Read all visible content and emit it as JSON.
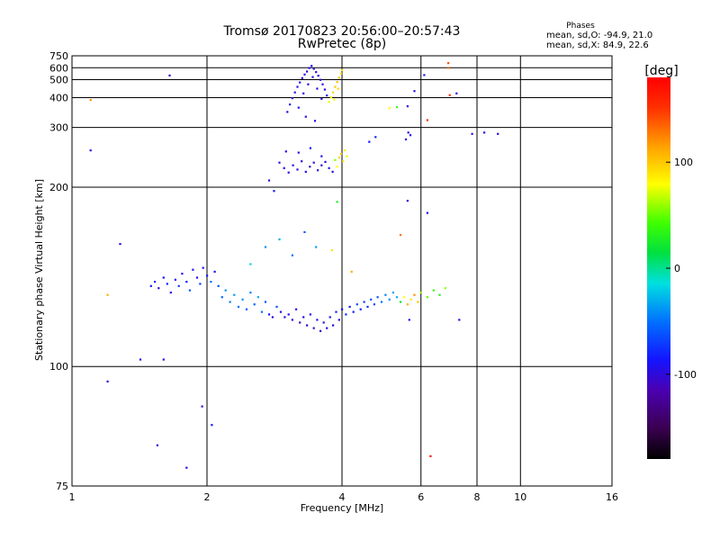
{
  "header": {
    "title_line1": "Tromsø 20170823 20:56:00–20:57:43",
    "title_line2": "RwPretec (8p)"
  },
  "stats": {
    "label": "Phases",
    "line1": "mean, sd,O:  -94.9, 21.0",
    "line2": "mean, sd,X:  84.9, 22.6"
  },
  "colorbar": {
    "unit_label": "[deg]",
    "ticks": [
      {
        "value": 100,
        "label": "100"
      },
      {
        "value": 0,
        "label": "0"
      },
      {
        "value": -100,
        "label": "-100"
      }
    ],
    "range": [
      -180,
      180
    ]
  },
  "chart_data": {
    "type": "scatter",
    "xlabel": "Frequency [MHz]",
    "ylabel": "Stationary phase Virtual Height [km]",
    "x_scale": "log",
    "y_scale": "reciprocal",
    "xlim": [
      1,
      16
    ],
    "ylim": [
      75,
      750
    ],
    "x_ticks": [
      {
        "value": 1,
        "label": "1"
      },
      {
        "value": 2,
        "label": "2"
      },
      {
        "value": 4,
        "label": "4"
      },
      {
        "value": 6,
        "label": "6"
      },
      {
        "value": 8,
        "label": "8"
      },
      {
        "value": 10,
        "label": "10"
      },
      {
        "value": 16,
        "label": "16"
      }
    ],
    "y_ticks": [
      {
        "value": 75,
        "label": "75"
      },
      {
        "value": 100,
        "label": "100"
      },
      {
        "value": 200,
        "label": "200"
      },
      {
        "value": 300,
        "label": "300"
      },
      {
        "value": 400,
        "label": "400"
      },
      {
        "value": 500,
        "label": "500"
      },
      {
        "value": 600,
        "label": "600"
      },
      {
        "value": 750,
        "label": "750"
      }
    ],
    "grid": true,
    "color_scale": "rainbow phase, -180 to 180 deg",
    "points": [
      [
        1.5,
        129,
        -95
      ],
      [
        1.53,
        131,
        -90
      ],
      [
        1.56,
        128,
        -100
      ],
      [
        1.6,
        133,
        -92
      ],
      [
        1.63,
        130,
        -85
      ],
      [
        1.66,
        126,
        -98
      ],
      [
        1.7,
        132,
        -90
      ],
      [
        1.73,
        129,
        -75
      ],
      [
        1.76,
        135,
        -95
      ],
      [
        1.8,
        131,
        -88
      ],
      [
        1.83,
        127,
        -60
      ],
      [
        1.86,
        137,
        -92
      ],
      [
        1.9,
        133,
        -100
      ],
      [
        1.93,
        130,
        -70
      ],
      [
        1.96,
        138,
        -95
      ],
      [
        2.0,
        134,
        -85
      ],
      [
        2.04,
        131,
        -50
      ],
      [
        2.08,
        136,
        -90
      ],
      [
        2.12,
        129,
        -65
      ],
      [
        2.16,
        124,
        -55
      ],
      [
        2.2,
        127,
        -40
      ],
      [
        2.25,
        122,
        -45
      ],
      [
        2.3,
        125,
        -35
      ],
      [
        2.35,
        120,
        -50
      ],
      [
        2.4,
        123,
        -40
      ],
      [
        2.45,
        119,
        -60
      ],
      [
        2.5,
        126,
        -45
      ],
      [
        2.55,
        121,
        -55
      ],
      [
        2.6,
        124,
        -30
      ],
      [
        2.65,
        118,
        -50
      ],
      [
        2.7,
        122,
        -65
      ],
      [
        2.75,
        117,
        -95
      ],
      [
        2.8,
        116,
        -100
      ],
      [
        2.86,
        120,
        -60
      ],
      [
        2.92,
        118,
        -95
      ],
      [
        2.98,
        116,
        -105
      ],
      [
        3.04,
        117,
        -98
      ],
      [
        3.1,
        115,
        -102
      ],
      [
        3.16,
        119,
        -95
      ],
      [
        3.22,
        114,
        -110
      ],
      [
        3.28,
        116,
        -100
      ],
      [
        3.34,
        113,
        -108
      ],
      [
        3.4,
        117,
        -96
      ],
      [
        3.46,
        112,
        -104
      ],
      [
        3.52,
        115,
        -99
      ],
      [
        3.58,
        111,
        -110
      ],
      [
        3.64,
        114,
        -95
      ],
      [
        3.7,
        112,
        -100
      ],
      [
        3.76,
        116,
        -90
      ],
      [
        3.82,
        113,
        -100
      ],
      [
        3.88,
        118,
        -85
      ],
      [
        3.94,
        115,
        -95
      ],
      [
        4.0,
        119,
        -90
      ],
      [
        4.08,
        117,
        -80
      ],
      [
        4.16,
        120,
        -85
      ],
      [
        4.24,
        118,
        -90
      ],
      [
        4.32,
        121,
        -70
      ],
      [
        4.4,
        119,
        -85
      ],
      [
        4.48,
        122,
        -75
      ],
      [
        4.56,
        120,
        -80
      ],
      [
        4.64,
        123,
        -65
      ],
      [
        4.72,
        121,
        -70
      ],
      [
        4.8,
        124,
        -60
      ],
      [
        4.9,
        122,
        -50
      ],
      [
        5.0,
        125,
        -45
      ],
      [
        5.1,
        123,
        -40
      ],
      [
        5.2,
        126,
        -35
      ],
      [
        5.3,
        124,
        -30
      ],
      [
        5.4,
        122,
        20
      ],
      [
        5.5,
        124,
        80
      ],
      [
        5.6,
        121,
        110
      ],
      [
        5.7,
        123,
        90
      ],
      [
        5.8,
        125,
        120
      ],
      [
        5.9,
        122,
        100
      ],
      [
        6.0,
        126,
        60
      ],
      [
        6.2,
        124,
        50
      ],
      [
        6.4,
        127,
        40
      ],
      [
        6.6,
        125,
        30
      ],
      [
        6.8,
        128,
        60
      ],
      [
        2.5,
        140,
        -20
      ],
      [
        2.7,
        150,
        -40
      ],
      [
        2.9,
        155,
        -30
      ],
      [
        3.1,
        145,
        -50
      ],
      [
        3.3,
        160,
        -60
      ],
      [
        3.5,
        150,
        -35
      ],
      [
        3.8,
        148,
        90
      ],
      [
        4.2,
        136,
        110
      ],
      [
        5.4,
        158,
        130
      ],
      [
        2.75,
        208,
        -100
      ],
      [
        2.82,
        196,
        -90
      ],
      [
        2.9,
        232,
        -100
      ],
      [
        2.97,
        224,
        -96
      ],
      [
        3.04,
        218,
        -104
      ],
      [
        3.11,
        228,
        -98
      ],
      [
        3.18,
        222,
        -100
      ],
      [
        3.25,
        234,
        -102
      ],
      [
        3.32,
        219,
        -95
      ],
      [
        3.39,
        226,
        -108
      ],
      [
        3.46,
        232,
        -100
      ],
      [
        3.53,
        221,
        -96
      ],
      [
        3.6,
        228,
        -104
      ],
      [
        3.67,
        233,
        -98
      ],
      [
        3.74,
        224,
        -100
      ],
      [
        3.81,
        219,
        -95
      ],
      [
        3.86,
        236,
        60
      ],
      [
        3.9,
        226,
        80
      ],
      [
        3.94,
        240,
        95
      ],
      [
        3.98,
        246,
        100
      ],
      [
        4.02,
        234,
        90
      ],
      [
        4.06,
        252,
        85
      ],
      [
        4.1,
        242,
        75
      ],
      [
        3.0,
        250,
        -95
      ],
      [
        3.2,
        248,
        -100
      ],
      [
        3.4,
        256,
        -90
      ],
      [
        3.6,
        242,
        -100
      ],
      [
        4.6,
        268,
        -90
      ],
      [
        4.75,
        278,
        -85
      ],
      [
        5.55,
        273,
        -95
      ],
      [
        5.62,
        288,
        -100
      ],
      [
        5.68,
        282,
        -92
      ],
      [
        3.9,
        185,
        30
      ],
      [
        5.6,
        186,
        -100
      ],
      [
        3.02,
        345,
        -100
      ],
      [
        3.06,
        372,
        -96
      ],
      [
        3.1,
        398,
        -102
      ],
      [
        3.14,
        425,
        -98
      ],
      [
        3.18,
        455,
        -100
      ],
      [
        3.22,
        482,
        -94
      ],
      [
        3.26,
        512,
        -100
      ],
      [
        3.3,
        540,
        -98
      ],
      [
        3.34,
        565,
        -102
      ],
      [
        3.38,
        598,
        -96
      ],
      [
        3.42,
        620,
        -100
      ],
      [
        3.46,
        590,
        -98
      ],
      [
        3.5,
        560,
        -100
      ],
      [
        3.54,
        530,
        -96
      ],
      [
        3.58,
        500,
        -100
      ],
      [
        3.62,
        470,
        -98
      ],
      [
        3.66,
        440,
        -102
      ],
      [
        3.7,
        410,
        -96
      ],
      [
        3.2,
        360,
        -98
      ],
      [
        3.28,
        420,
        -100
      ],
      [
        3.36,
        470,
        -96
      ],
      [
        3.44,
        520,
        -100
      ],
      [
        3.52,
        445,
        -98
      ],
      [
        3.6,
        395,
        -102
      ],
      [
        3.32,
        330,
        -95
      ],
      [
        3.48,
        318,
        -100
      ],
      [
        3.74,
        382,
        75
      ],
      [
        3.78,
        402,
        85
      ],
      [
        3.82,
        425,
        95
      ],
      [
        3.86,
        455,
        100
      ],
      [
        3.9,
        485,
        105
      ],
      [
        3.94,
        515,
        100
      ],
      [
        3.98,
        548,
        95
      ],
      [
        4.0,
        578,
        90
      ],
      [
        3.84,
        392,
        80
      ],
      [
        3.92,
        444,
        95
      ],
      [
        5.1,
        358,
        80
      ],
      [
        5.3,
        362,
        40
      ],
      [
        5.6,
        365,
        -100
      ],
      [
        5.8,
        432,
        -95
      ],
      [
        6.1,
        535,
        -90
      ],
      [
        6.9,
        600,
        130
      ],
      [
        6.9,
        652,
        140
      ],
      [
        6.95,
        412,
        150
      ],
      [
        7.2,
        420,
        -100
      ],
      [
        7.8,
        285,
        -100
      ],
      [
        8.3,
        288,
        -95
      ],
      [
        8.9,
        285,
        -100
      ],
      [
        1.65,
        532,
        -100
      ],
      [
        1.1,
        390,
        120
      ],
      [
        1.1,
        252,
        -100
      ],
      [
        1.2,
        125,
        110
      ],
      [
        1.28,
        152,
        -95
      ],
      [
        1.42,
        102,
        -95
      ],
      [
        1.6,
        102,
        -100
      ],
      [
        1.2,
        96,
        -110
      ],
      [
        1.55,
        82,
        -100
      ],
      [
        1.8,
        78,
        -95
      ],
      [
        2.05,
        86,
        -90
      ],
      [
        1.95,
        90,
        -100
      ],
      [
        6.2,
        175,
        -95
      ],
      [
        6.3,
        80,
        170
      ],
      [
        7.3,
        115,
        -100
      ],
      [
        6.2,
        320,
        150
      ],
      [
        5.65,
        115,
        -90
      ]
    ]
  }
}
